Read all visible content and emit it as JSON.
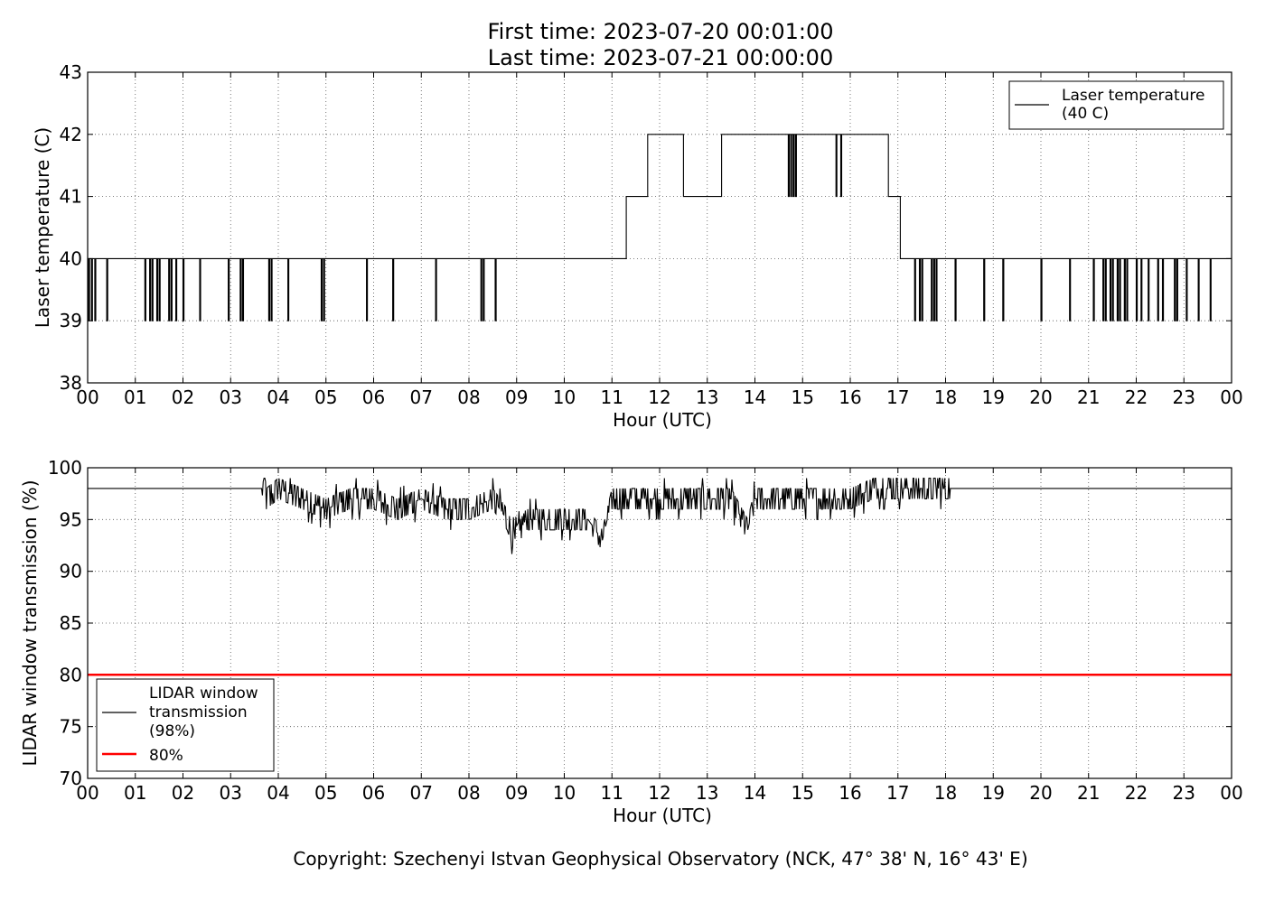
{
  "title_lines": [
    "First time: 2023-07-20 00:01:00",
    "Last time: 2023-07-21 00:00:00"
  ],
  "copyright": "Copyright: Szechenyi Istvan Geophysical Observatory (NCK, 47° 38' N, 16° 43' E)",
  "chart_data": [
    {
      "type": "line",
      "xlabel": "Hour (UTC)",
      "ylabel": "Laser temperature (C)",
      "xlim": [
        0,
        24
      ],
      "ylim": [
        38,
        43
      ],
      "x_ticks": [
        "00",
        "01",
        "02",
        "03",
        "04",
        "05",
        "06",
        "07",
        "08",
        "09",
        "10",
        "11",
        "12",
        "13",
        "14",
        "15",
        "16",
        "17",
        "18",
        "19",
        "20",
        "21",
        "22",
        "23",
        "00"
      ],
      "y_ticks": [
        38,
        39,
        40,
        41,
        42,
        43
      ],
      "grid": true,
      "legend_position": "upper right",
      "series": [
        {
          "name": "Laser temperature (40 C)",
          "color": "#000000",
          "baseline_levels": [
            [
              0,
              11.3,
              40
            ],
            [
              11.3,
              11.75,
              41
            ],
            [
              11.75,
              12.5,
              42
            ],
            [
              12.5,
              13.3,
              41
            ],
            [
              13.3,
              16.8,
              42
            ],
            [
              16.8,
              17.05,
              41
            ],
            [
              17.05,
              24,
              40
            ]
          ],
          "dips_to_39_hours": [
            0.02,
            0.08,
            0.15,
            0.4,
            1.2,
            1.3,
            1.35,
            1.45,
            1.5,
            1.7,
            1.75,
            1.85,
            2.0,
            2.35,
            2.95,
            3.2,
            3.25,
            3.8,
            3.85,
            4.2,
            4.9,
            4.95,
            5.85,
            6.4,
            7.3,
            8.25,
            8.3,
            8.55,
            17.35,
            17.45,
            17.5,
            17.7,
            17.75,
            17.8,
            18.2,
            18.8,
            19.2,
            20.0,
            20.6,
            21.1,
            21.3,
            21.35,
            21.45,
            21.5,
            21.6,
            21.65,
            21.75,
            21.8,
            22.0,
            22.1,
            22.25,
            22.45,
            22.55,
            22.8,
            22.85,
            23.05,
            23.3,
            23.55
          ],
          "dips_from_42_to_41_hours": [
            12.55,
            14.7,
            14.75,
            14.8,
            14.85,
            15.7,
            15.8
          ]
        }
      ]
    },
    {
      "type": "line",
      "xlabel": "Hour (UTC)",
      "ylabel": "LIDAR window transmission (%)",
      "xlim": [
        0,
        24
      ],
      "ylim": [
        70,
        100
      ],
      "x_ticks": [
        "00",
        "01",
        "02",
        "03",
        "04",
        "05",
        "06",
        "07",
        "08",
        "09",
        "10",
        "11",
        "12",
        "13",
        "14",
        "15",
        "16",
        "17",
        "18",
        "19",
        "20",
        "21",
        "22",
        "23",
        "00"
      ],
      "y_ticks": [
        70,
        75,
        80,
        85,
        90,
        95,
        100
      ],
      "grid": true,
      "legend_position": "lower left",
      "series": [
        {
          "name": "LIDAR window transmission (98%)",
          "color": "#000000",
          "x": [
            0,
            3.65,
            3.7,
            3.75,
            4.0,
            4.5,
            5.0,
            5.5,
            6.0,
            6.5,
            7.0,
            7.5,
            8.0,
            8.5,
            8.8,
            8.95,
            9.2,
            9.5,
            10.0,
            10.5,
            10.8,
            11.0,
            11.5,
            12.0,
            12.5,
            13.0,
            13.5,
            13.85,
            14.0,
            14.5,
            15.0,
            15.5,
            16.0,
            16.5,
            17.0,
            17.5,
            18.0,
            18.1,
            24
          ],
          "y": [
            98,
            98,
            99,
            97,
            98,
            97,
            96,
            97,
            97,
            96,
            97,
            96,
            96,
            97,
            95,
            93,
            95,
            95,
            95,
            95,
            93,
            97,
            97,
            97,
            97,
            97,
            97,
            94,
            97,
            97,
            97,
            97,
            97,
            98,
            98,
            98,
            98,
            98,
            98
          ]
        },
        {
          "name": "80%",
          "color": "#ff0000",
          "x": [
            0,
            24
          ],
          "y": [
            80,
            80
          ]
        }
      ]
    }
  ]
}
